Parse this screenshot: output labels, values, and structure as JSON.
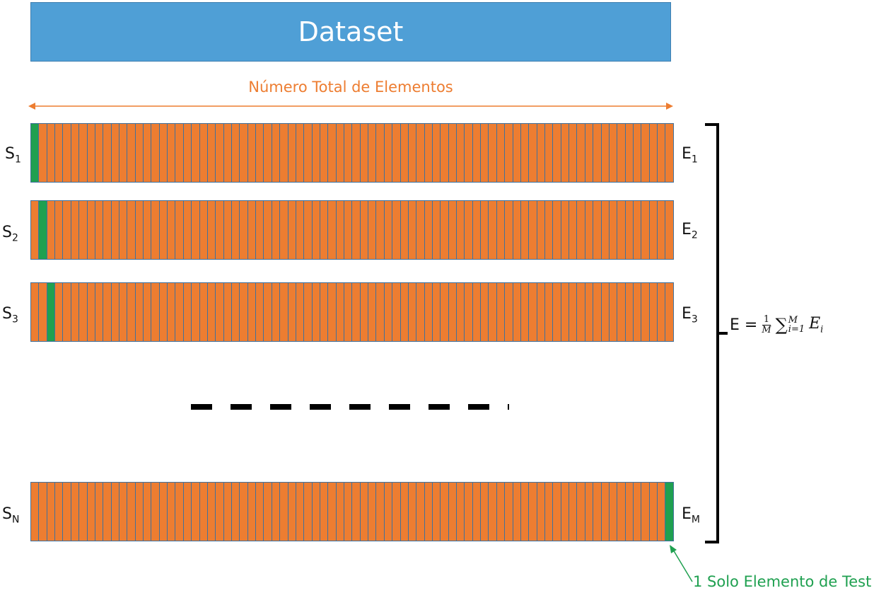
{
  "dataset": {
    "label": "Dataset"
  },
  "total_label": "Número Total de Elementos",
  "rows": [
    {
      "s": "S",
      "s_sub": "1",
      "e": "E",
      "e_sub": "1",
      "test_index": 0
    },
    {
      "s": "S",
      "s_sub": "2",
      "e": "E",
      "e_sub": "2",
      "test_index": 1
    },
    {
      "s": "S",
      "s_sub": "3",
      "e": "E",
      "e_sub": "3",
      "test_index": 2
    },
    {
      "s": "S",
      "s_sub": "N",
      "e": "E",
      "e_sub": "M",
      "test_index": 79
    }
  ],
  "cells_per_row": 80,
  "formula": {
    "lhs": "E =",
    "num": "1",
    "den": "M",
    "sum": "∑",
    "upper": "M",
    "lower": "i=1",
    "term": "E",
    "term_sub": "i"
  },
  "test_label": "1 Solo Elemento de Test",
  "colors": {
    "dataset": "#4f9fd6",
    "cell": "#ed7d31",
    "test_cell": "#1fa050",
    "cell_border": "#41719c",
    "accent_label": "#ed7d31",
    "test_text": "#1fa050"
  }
}
